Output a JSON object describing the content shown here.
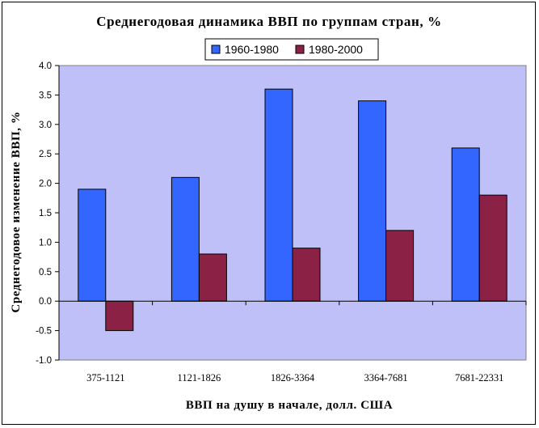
{
  "chart_data": {
    "type": "bar",
    "title": "Среднегодовая динамика ВВП по группам стран, %",
    "xlabel": "ВВП на душу в начале, долл. США",
    "ylabel": "Среднегодовое изменение ВВП, %",
    "categories": [
      "375-1121",
      "1121-1826",
      "1826-3364",
      "3364-7681",
      "7681-22331"
    ],
    "series": [
      {
        "name": "1960-1980",
        "values": [
          1.9,
          2.1,
          3.6,
          3.4,
          2.6
        ],
        "color": "#3366ff"
      },
      {
        "name": "1980-2000",
        "values": [
          -0.5,
          0.8,
          0.9,
          1.2,
          1.8
        ],
        "color": "#8b2246"
      }
    ],
    "ylim": [
      -1.0,
      4.0
    ],
    "yticks": [
      "-1.0",
      "-0.5",
      "0.0",
      "0.5",
      "1.0",
      "1.5",
      "2.0",
      "2.5",
      "3.0",
      "3.5",
      "4.0"
    ],
    "grid": true,
    "legend": "top",
    "plot_background": "#c0c0f8"
  }
}
